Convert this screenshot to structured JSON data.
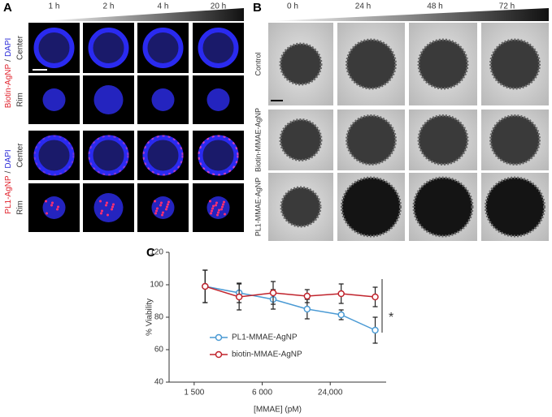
{
  "panels": {
    "A": {
      "label": "A",
      "times": [
        "1 h",
        "2 h",
        "4 h",
        "20 h"
      ],
      "groups": [
        {
          "label": [
            "Biotin-AgNP",
            "/",
            "DAPI"
          ],
          "rows": [
            "Center",
            "Rim"
          ]
        },
        {
          "label": [
            "PL1-AgNP",
            "/",
            "DAPI"
          ],
          "rows": [
            "Center",
            "Rim"
          ]
        }
      ]
    },
    "B": {
      "label": "B",
      "times": [
        "0 h",
        "24 h",
        "48 h",
        "72 h"
      ],
      "rows": [
        "Control",
        "Biotin-MMAE-AgNP",
        "PL1-MMAE-AgNP"
      ]
    },
    "C": {
      "label": "C"
    }
  },
  "chart_data": {
    "type": "line",
    "x": [
      1875,
      3750,
      7500,
      15000,
      30000,
      60000
    ],
    "series": [
      {
        "name": "PL1-MMAE-AgNP",
        "color": "#4a9ad4",
        "values": [
          99,
          95,
          91,
          85,
          81.5,
          72
        ],
        "errors": [
          10,
          6,
          6,
          6,
          3,
          8
        ]
      },
      {
        "name": "biotin-MMAE-AgNP",
        "color": "#c0232c",
        "values": [
          99,
          92.5,
          95,
          93,
          94.5,
          92.5
        ],
        "errors": [
          10,
          8,
          7,
          4,
          6,
          6
        ]
      }
    ],
    "xlabel": "[MMAE] (pM)",
    "ylabel": "% Viability",
    "xlog": true,
    "xlim": [
      900,
      75000
    ],
    "xticks": [
      {
        "value": 1500,
        "label": "1 500"
      },
      {
        "value": 6000,
        "label": "6 000"
      },
      {
        "value": 24000,
        "label": "24,000"
      }
    ],
    "ylim": [
      40,
      120
    ],
    "yticks": [
      40,
      60,
      80,
      100,
      120
    ],
    "annotation": "*"
  }
}
